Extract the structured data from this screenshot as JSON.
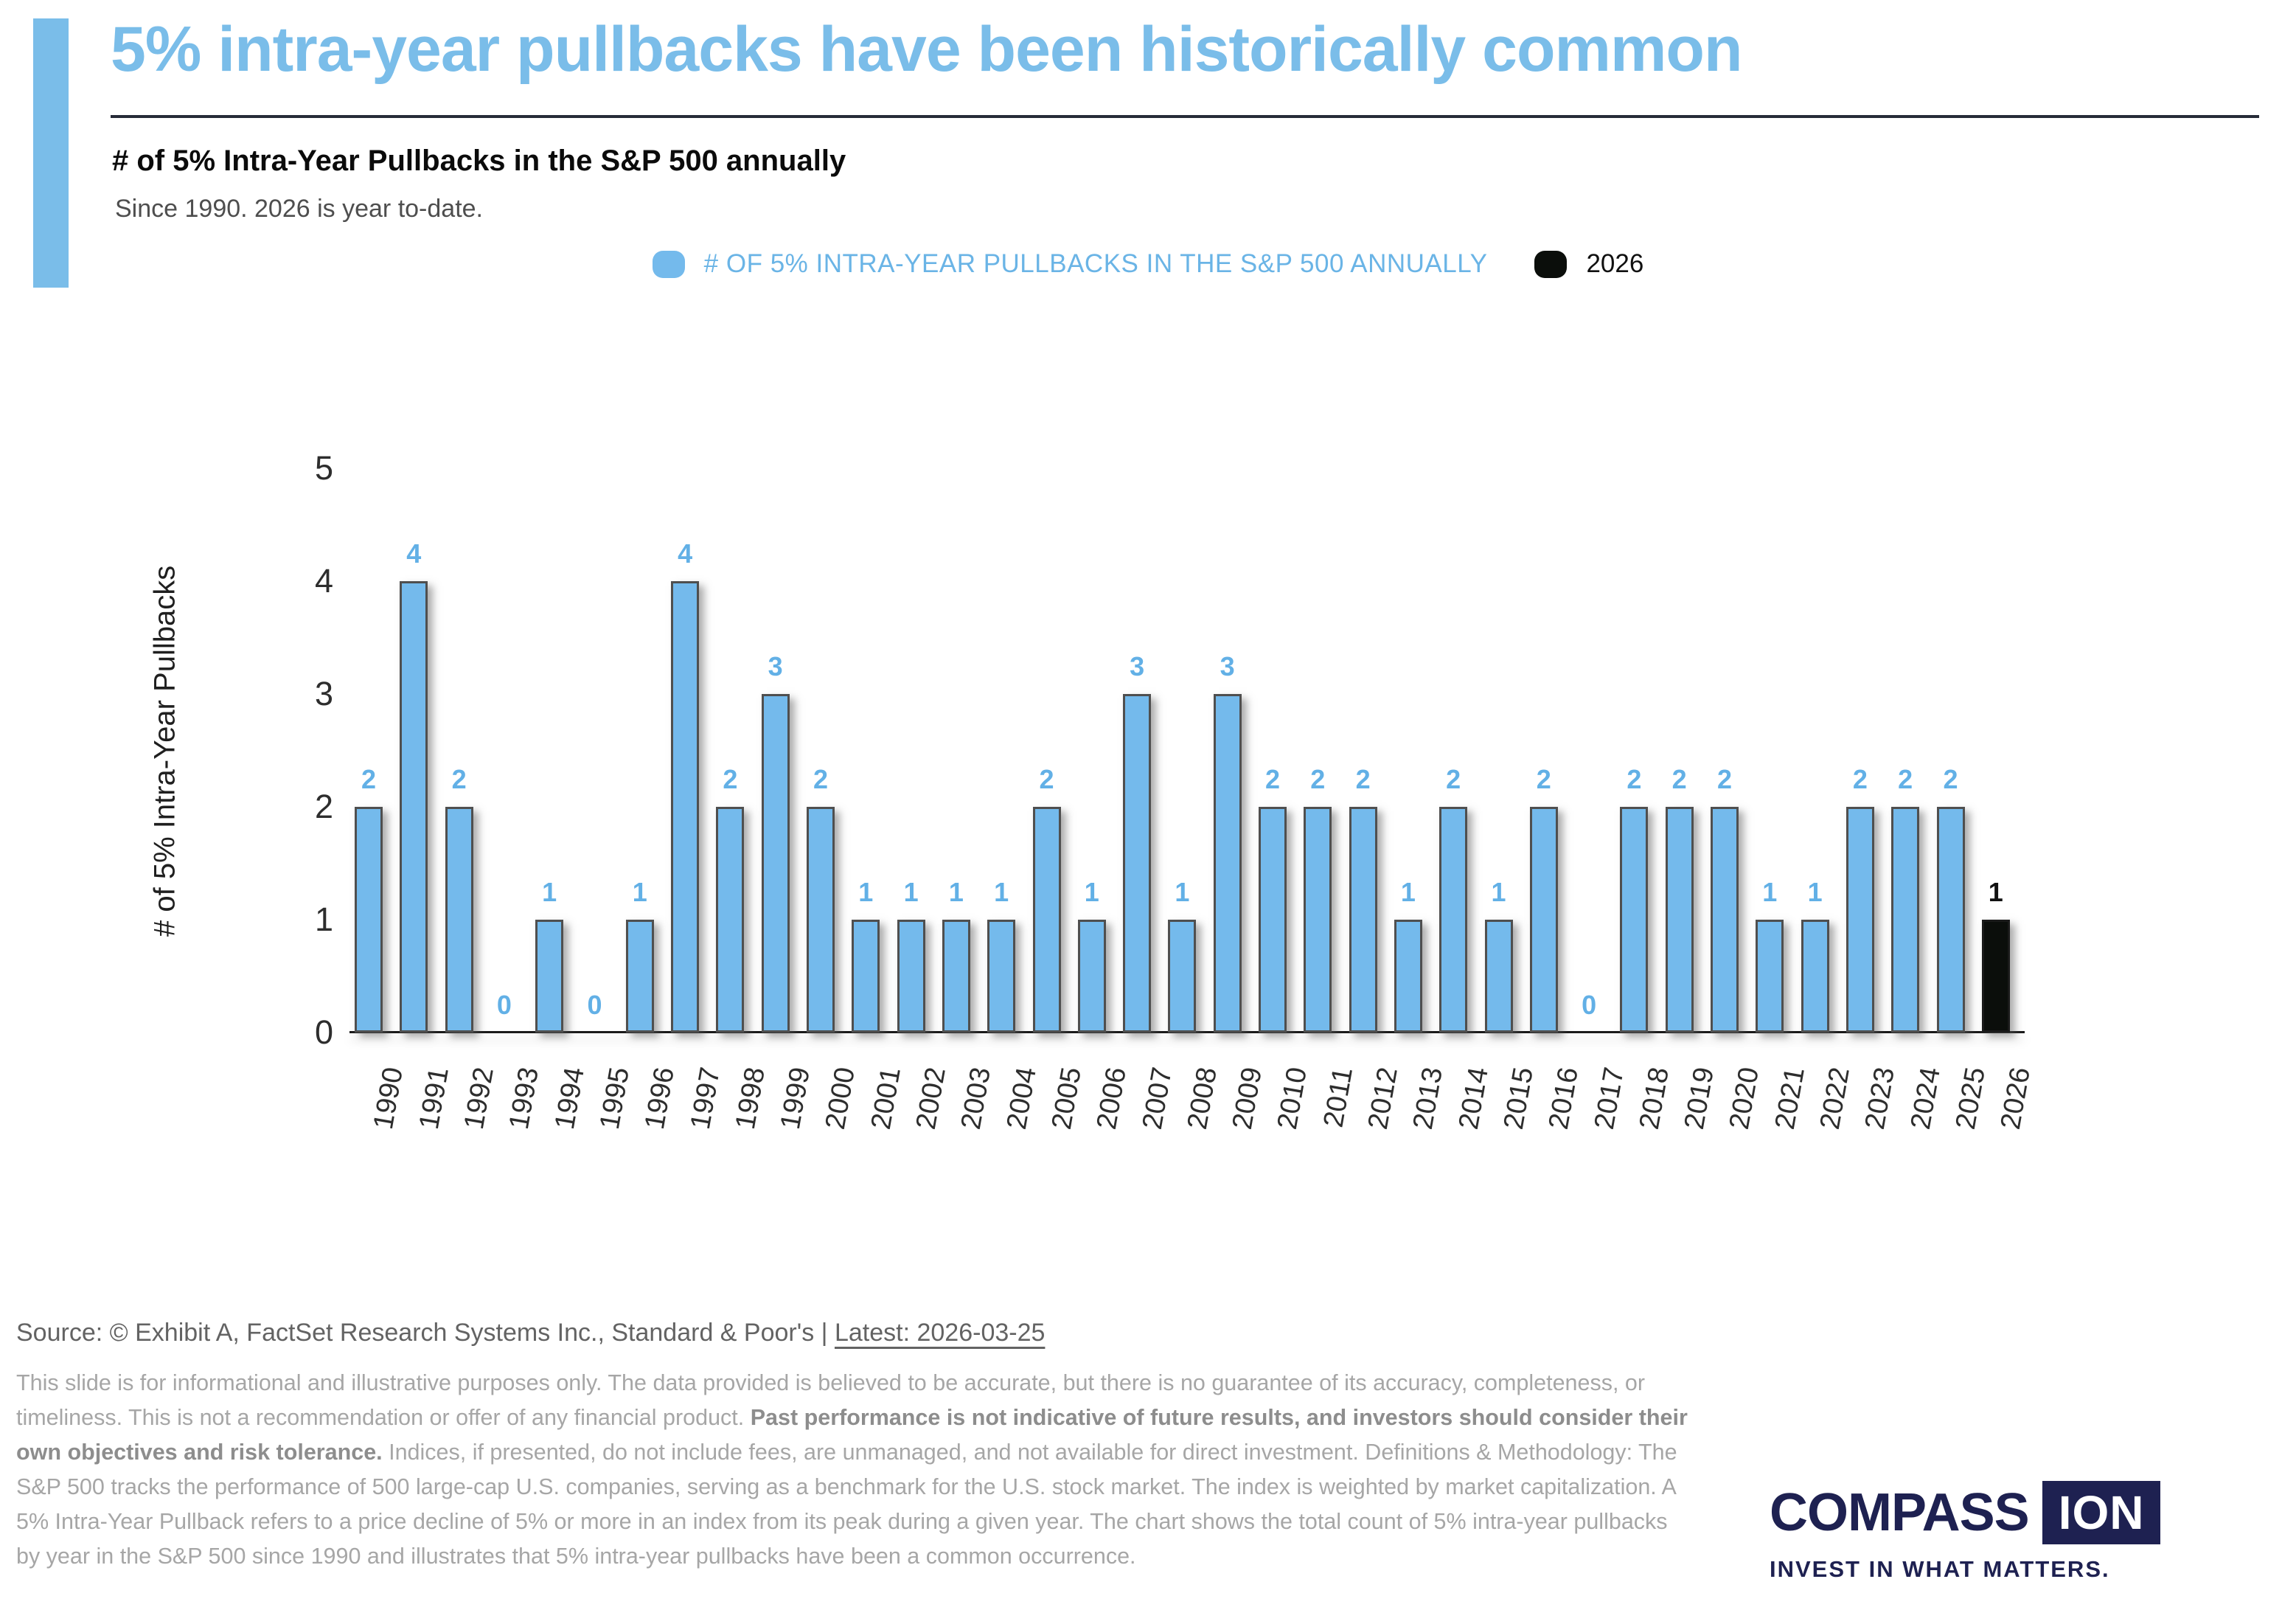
{
  "header": {
    "title": "5% intra-year pullbacks have been historically common",
    "subtitle": "# of 5% Intra-Year Pullbacks in the S&P 500 annually",
    "tagline": "Since 1990. 2026 is year to-date.",
    "accent_color": "#7abde9",
    "title_color": "#7abde9",
    "divider_color": "#262b38"
  },
  "legend": {
    "series_label": "# OF 5% INTRA-YEAR PULLBACKS IN THE S&P 500 ANNUALLY",
    "series_swatch_color": "#74baec",
    "series_text_color": "#6ab4e6",
    "year_label": "2026",
    "year_swatch_color": "#0b0e0b"
  },
  "chart_data": {
    "type": "bar",
    "title": "# of 5% Intra-Year Pullbacks in the S&P 500 annually",
    "categories": [
      "1990",
      "1991",
      "1992",
      "1993",
      "1994",
      "1995",
      "1996",
      "1997",
      "1998",
      "1999",
      "2000",
      "2001",
      "2002",
      "2003",
      "2004",
      "2005",
      "2006",
      "2007",
      "2008",
      "2009",
      "2010",
      "2011",
      "2012",
      "2013",
      "2014",
      "2015",
      "2016",
      "2017",
      "2018",
      "2019",
      "2020",
      "2021",
      "2022",
      "2023",
      "2024",
      "2025",
      "2026"
    ],
    "values": [
      2,
      4,
      2,
      0,
      1,
      0,
      1,
      4,
      2,
      3,
      2,
      1,
      1,
      1,
      1,
      2,
      1,
      3,
      1,
      3,
      2,
      2,
      2,
      1,
      2,
      1,
      2,
      0,
      2,
      2,
      2,
      1,
      1,
      2,
      2,
      2,
      1
    ],
    "highlight_category": "2026",
    "ylabel": "# of 5% Intra-Year Pullbacks",
    "ylim": [
      0,
      5
    ],
    "yticks": [
      0,
      1,
      2,
      3,
      4,
      5
    ],
    "grid": false,
    "legend_position": "top",
    "bar_color": "#74baec",
    "bar_border_color": "#4f4f4f",
    "highlight_bar_color": "#0b0e0b",
    "highlight_bar_border_color": "#1a1a1a",
    "value_label_color": "#62b0e6",
    "highlight_value_label_color": "#111111"
  },
  "footer": {
    "source_prefix": "Source: © Exhibit A, FactSet Research Systems Inc., Standard & Poor's | ",
    "source_latest": "Latest: 2026-03-25",
    "disclaimer": [
      {
        "bold": false,
        "text": "This slide is for informational and illustrative purposes only. The data provided is believed to be accurate, but there is no guarantee of its accuracy, completeness, or timeliness. This is not a recommendation or offer of any financial product. "
      },
      {
        "bold": true,
        "text": "Past performance is not indicative of future results, and investors should consider their own objectives and risk tolerance."
      },
      {
        "bold": false,
        "text": " Indices, if presented, do not include fees, are unmanaged, and not available for direct investment. Definitions & Methodology: The S&P 500 tracks the performance of 500 large-cap U.S. companies, serving as a benchmark for the U.S. stock market. The index is weighted by market capitalization. A 5% Intra-Year Pullback refers to a price decline of 5% or more in an index from its peak during a given year. The chart shows the total count of 5% intra-year pullbacks by year in the S&P 500 since 1990 and illustrates that 5% intra-year pullbacks have been a common occurrence."
      }
    ],
    "logo": {
      "name": "COMPASS",
      "box": "ION",
      "tagline": "INVEST IN WHAT MATTERS.",
      "color": "#1e2151"
    }
  }
}
